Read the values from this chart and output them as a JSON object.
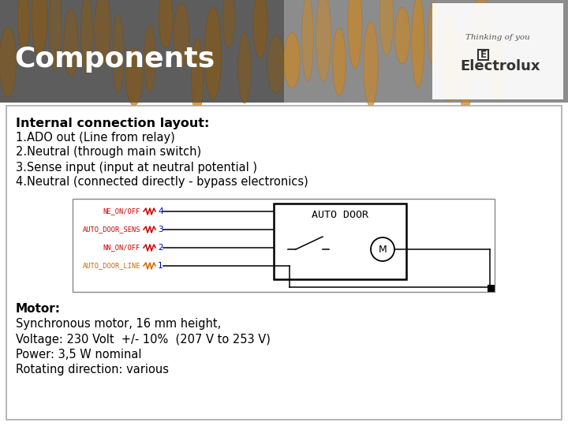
{
  "title": "Components",
  "title_color": "#FFFFFF",
  "slide_bg": "#FFFFFF",
  "border_color": "#AAAAAA",
  "heading": "Internal connection layout:",
  "items": [
    "1.ADO out (Line from relay)",
    "2.Neutral (through main switch)",
    "3.Sense input (input at neutral potential )",
    "4.Neutral (connected directly - bypass electronics)"
  ],
  "connector_labels": [
    "NE_ON/OFF",
    "AUTO_DOOR_SENS",
    "NN_ON/OFF",
    "AUTO_DOOR_LINE"
  ],
  "connector_numbers": [
    "4",
    "3",
    "2",
    "1"
  ],
  "connector_number_color": "#0000AA",
  "connector_label_color_red": "#CC0000",
  "connector_label_color_orange": "#CC6600",
  "auto_door_label": "AUTO DOOR",
  "motor_label": "M",
  "motor_heading": "Motor:",
  "motor_lines": [
    "Synchronous motor, 16 mm height,",
    "Voltage: 230 Volt  +/- 10%  (207 V to 253 V)",
    "Power: 3,5 W nominal",
    "Rotating direction: various"
  ],
  "electrolux_text": "Electrolux",
  "thinking_text": "Thinking of you"
}
